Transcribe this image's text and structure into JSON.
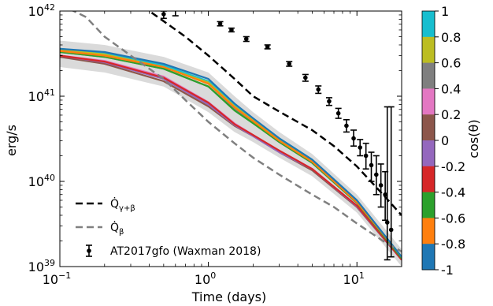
{
  "chart_data": {
    "type": "line",
    "xlabel": "Time (days)",
    "ylabel": "erg/s",
    "xscale": "log",
    "yscale": "log",
    "xlim": [
      0.1,
      20
    ],
    "ylim": [
      1e+39,
      1e+42
    ],
    "x_ticks": [
      {
        "value": 0.1,
        "base": "10",
        "exp": "−1"
      },
      {
        "value": 1,
        "base": "10",
        "exp": "0"
      },
      {
        "value": 10,
        "base": "10",
        "exp": "1"
      }
    ],
    "y_ticks": [
      {
        "value": 1e+39,
        "base": "10",
        "exp": "39"
      },
      {
        "value": 1e+40,
        "base": "10",
        "exp": "40"
      },
      {
        "value": 1e+41,
        "base": "10",
        "exp": "41"
      },
      {
        "value": 1e+42,
        "base": "10",
        "exp": "42"
      }
    ],
    "grid": false,
    "legend": {
      "position": "lower-left",
      "entries": [
        {
          "key": "q_gamma_beta",
          "label": "Q̇",
          "sub": "γ+β",
          "style": "dashed",
          "color": "#000000"
        },
        {
          "key": "q_beta",
          "label": "Q̇",
          "sub": "β",
          "style": "dashed",
          "color": "#808080"
        },
        {
          "key": "observed",
          "label": "AT2017gfo (Waxman 2018)",
          "style": "errorbar",
          "color": "#000000"
        }
      ]
    },
    "heating_rates": [
      {
        "key": "q_gamma_beta",
        "color": "#000000",
        "x": [
          0.1,
          0.2,
          0.4,
          0.7,
          1.0,
          1.5,
          2.0,
          3.0,
          5.0,
          7.0,
          10.0,
          15.0,
          20.0
        ],
        "y": [
          5e+42,
          2.2e+42,
          1e+42,
          5e+41,
          3e+41,
          1.6e+41,
          1e+41,
          6.6e+40,
          4e+40,
          2.6e+40,
          1.5e+40,
          7e+39,
          4e+39
        ]
      },
      {
        "key": "q_beta",
        "color": "#808080",
        "x": [
          0.1,
          0.15,
          0.2,
          0.3,
          0.5,
          0.7,
          1.0,
          1.5,
          2.0,
          3.0,
          5.0,
          7.0,
          10.0,
          15.0,
          20.0
        ],
        "y": [
          1.2e+42,
          8.5e+41,
          5e+41,
          3e+41,
          1.6e+41,
          9e+40,
          5e+40,
          2.8e+40,
          1.9e+40,
          1.2e+40,
          7e+39,
          5e+39,
          3.2e+39,
          2e+39,
          1.5e+39
        ]
      }
    ],
    "observed": {
      "name": "AT2017gfo (Waxman 2018)",
      "points": [
        {
          "t": 0.5,
          "L": 9.2e+41,
          "lo": 8.2e+41,
          "hi": 1e+42
        },
        {
          "t": 0.6,
          "L": 1.12e+42,
          "lo": 8.8e+41,
          "hi": 1.3e+42
        },
        {
          "t": 1.2,
          "L": 7.1e+41,
          "lo": 6.7e+41,
          "hi": 7.5e+41
        },
        {
          "t": 1.43,
          "L": 6e+41,
          "lo": 5.7e+41,
          "hi": 6.3e+41
        },
        {
          "t": 1.8,
          "L": 4.7e+41,
          "lo": 4.4e+41,
          "hi": 5e+41
        },
        {
          "t": 2.5,
          "L": 3.8e+41,
          "lo": 3.6e+41,
          "hi": 4e+41
        },
        {
          "t": 3.5,
          "L": 2.4e+41,
          "lo": 2.25e+41,
          "hi": 2.55e+41
        },
        {
          "t": 4.5,
          "L": 1.65e+41,
          "lo": 1.5e+41,
          "hi": 1.8e+41
        },
        {
          "t": 5.5,
          "L": 1.2e+41,
          "lo": 1.08e+41,
          "hi": 1.32e+41
        },
        {
          "t": 6.5,
          "L": 8.7e+40,
          "lo": 7.8e+40,
          "hi": 9.6e+40
        },
        {
          "t": 7.5,
          "L": 6.3e+40,
          "lo": 5.5e+40,
          "hi": 7.2e+40
        },
        {
          "t": 8.5,
          "L": 4.5e+40,
          "lo": 3.8e+40,
          "hi": 5.3e+40
        },
        {
          "t": 9.5,
          "L": 3.2e+40,
          "lo": 2.6e+40,
          "hi": 4e+40
        },
        {
          "t": 10.5,
          "L": 2.5e+40,
          "lo": 2e+40,
          "hi": 3.1e+40
        },
        {
          "t": 11.5,
          "L": 2e+40,
          "lo": 1.4e+40,
          "hi": 2.8e+40
        },
        {
          "t": 12.5,
          "L": 1.55e+40,
          "lo": 1e+40,
          "hi": 2.2e+40
        },
        {
          "t": 13.5,
          "L": 1.2e+40,
          "lo": 7e+39,
          "hi": 2e+40
        },
        {
          "t": 14.5,
          "L": 9e+39,
          "lo": 5e+39,
          "hi": 1.6e+40
        },
        {
          "t": 15.5,
          "L": 7e+39,
          "lo": 3.5e+39,
          "hi": 1.3e+40
        },
        {
          "t": 16.0,
          "L": 3.3e+39,
          "lo": 1.2e+39,
          "hi": 7.5e+40
        },
        {
          "t": 17.0,
          "L": 2.7e+39,
          "lo": 1.3e+39,
          "hi": 7.5e+40
        }
      ]
    },
    "colorbar": {
      "label": "cos(θ)",
      "ticks": [
        "1",
        "0.8",
        "0.6",
        "0.4",
        "0.2",
        "0",
        "-0.2",
        "-0.4",
        "-0.6",
        "-0.8",
        "-1"
      ],
      "colors": [
        "#17becf",
        "#bcbd22",
        "#7f7f7f",
        "#e377c2",
        "#8c564b",
        "#9467bd",
        "#d62728",
        "#2ca02c",
        "#ff7f0e",
        "#1f77b4"
      ]
    },
    "viewing_angle_lightcurves": [
      {
        "cos_theta": 0.9,
        "color": "#17becf",
        "x": [
          0.1,
          0.2,
          0.5,
          1.0,
          1.5,
          2.0,
          3.0,
          5.0,
          10.0,
          20.0
        ],
        "y": [
          3.6e+41,
          3.2e+41,
          2.3e+41,
          1.5e+41,
          8e+40,
          5.4e+40,
          3.2e+40,
          1.8e+40,
          6e+39,
          1.3e+39
        ]
      },
      {
        "cos_theta": 0.7,
        "color": "#bcbd22",
        "x": [
          0.1,
          0.2,
          0.5,
          1.0,
          1.5,
          2.0,
          3.0,
          5.0,
          10.0,
          20.0
        ],
        "y": [
          3.5e+41,
          3.1e+41,
          2.2e+41,
          1.45e+41,
          7.6e+40,
          5.2e+40,
          3.1e+40,
          1.75e+40,
          5.8e+39,
          1.3e+39
        ]
      },
      {
        "cos_theta": 0.5,
        "color": "#7f7f7f",
        "x": [
          0.1,
          0.2,
          0.5,
          1.0,
          1.5,
          2.0,
          3.0,
          5.0,
          10.0,
          20.0
        ],
        "y": [
          3.3e+41,
          2.9e+41,
          2.1e+41,
          1.3e+41,
          7e+40,
          4.9e+40,
          2.9e+40,
          1.65e+40,
          5.6e+39,
          1.25e+39
        ]
      },
      {
        "cos_theta": 0.3,
        "color": "#e377c2",
        "x": [
          0.1,
          0.2,
          0.5,
          1.0,
          1.5,
          2.0,
          3.0,
          5.0,
          10.0,
          20.0
        ],
        "y": [
          3e+41,
          2.6e+41,
          1.7e+41,
          8.5e+40,
          4.8e+40,
          3.5e+40,
          2.3e+40,
          1.4e+40,
          5.2e+39,
          1.2e+39
        ]
      },
      {
        "cos_theta": 0.1,
        "color": "#8c564b",
        "x": [
          0.1,
          0.2,
          0.5,
          1.0,
          1.5,
          2.0,
          3.0,
          5.0,
          10.0,
          20.0
        ],
        "y": [
          2.9e+41,
          2.4e+41,
          1.5e+41,
          7.6e+40,
          4.5e+40,
          3.4e+40,
          2.2e+40,
          1.35e+40,
          5e+39,
          1.2e+39
        ]
      },
      {
        "cos_theta": -0.1,
        "color": "#9467bd",
        "x": [
          0.1,
          0.2,
          0.5,
          1.0,
          1.5,
          2.0,
          3.0,
          5.0,
          10.0,
          20.0
        ],
        "y": [
          3e+41,
          2.5e+41,
          1.6e+41,
          8e+40,
          4.6e+40,
          3.4e+40,
          2.2e+40,
          1.4e+40,
          5.1e+39,
          1.2e+39
        ]
      },
      {
        "cos_theta": -0.3,
        "color": "#d62728",
        "x": [
          0.1,
          0.2,
          0.5,
          1.0,
          1.5,
          2.0,
          3.0,
          5.0,
          10.0,
          20.0
        ],
        "y": [
          3e+41,
          2.55e+41,
          1.65e+41,
          8.4e+40,
          4.7e+40,
          3.5e+40,
          2.3e+40,
          1.4e+40,
          5.2e+39,
          1.2e+39
        ]
      },
      {
        "cos_theta": -0.5,
        "color": "#2ca02c",
        "x": [
          0.1,
          0.2,
          0.5,
          1.0,
          1.5,
          2.0,
          3.0,
          5.0,
          10.0,
          20.0
        ],
        "y": [
          3.3e+41,
          2.9e+41,
          2.1e+41,
          1.3e+41,
          6.8e+40,
          4.8e+40,
          2.9e+40,
          1.65e+40,
          5.6e+39,
          1.25e+39
        ]
      },
      {
        "cos_theta": -0.7,
        "color": "#ff7f0e",
        "x": [
          0.1,
          0.2,
          0.5,
          1.0,
          1.5,
          2.0,
          3.0,
          5.0,
          10.0,
          20.0
        ],
        "y": [
          3.4e+41,
          3e+41,
          2.2e+41,
          1.4e+41,
          7.4e+40,
          5.1e+40,
          3e+40,
          1.7e+40,
          5.7e+39,
          1.3e+39
        ]
      },
      {
        "cos_theta": -0.9,
        "color": "#1f77b4",
        "x": [
          0.1,
          0.2,
          0.5,
          1.0,
          1.5,
          2.0,
          3.0,
          5.0,
          10.0,
          20.0
        ],
        "y": [
          3.6e+41,
          3.3e+41,
          2.4e+41,
          1.6e+41,
          8.2e+40,
          5.5e+40,
          3.2e+40,
          1.8e+40,
          6e+39,
          1.3e+39
        ]
      }
    ],
    "uncertainty_band": {
      "color": "#d3d3d3",
      "x": [
        0.1,
        0.2,
        0.5,
        1.0,
        1.5,
        2.0,
        3.0,
        5.0,
        10.0,
        20.0
      ],
      "lo": [
        2.2e+41,
        1.9e+41,
        1.3e+41,
        6.5e+40,
        3.8e+40,
        2.9e+40,
        1.9e+40,
        1.15e+40,
        4.3e+39,
        1e+39
      ],
      "hi": [
        4.5e+41,
        4e+41,
        2.9e+41,
        1.9e+41,
        1e+41,
        6.5e+40,
        3.8e+40,
        2.1e+40,
        7e+39,
        1.6e+39
      ]
    }
  }
}
